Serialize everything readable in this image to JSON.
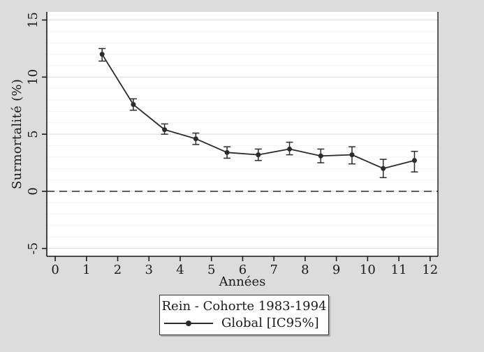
{
  "figure": {
    "background_color": "#dcdcdc",
    "plot_background": "#ffffff",
    "series_color": "#2b2b2b",
    "axis_color": "#1a1a1a",
    "grid_major_color": "#e2e2e2",
    "grid_minor_color": "#f4f4f4",
    "zero_line_color": "#3d3d3d"
  },
  "legend": {
    "title": "Rein - Cohorte 1983-1994",
    "entries": [
      {
        "label": "Global [IC95%]",
        "marker": "line-with-dot"
      }
    ]
  },
  "chart_data": {
    "type": "line",
    "title": "",
    "xlabel": "Années",
    "ylabel": "Surmortalité (%)",
    "xlim": [
      -0.27,
      12.25
    ],
    "ylim": [
      -5.69,
      15.71
    ],
    "x_ticks": [
      0,
      1,
      2,
      3,
      4,
      5,
      6,
      7,
      8,
      9,
      10,
      11,
      12
    ],
    "y_ticks": [
      -5,
      0,
      5,
      10,
      15
    ],
    "y_tick_label_angle": -90,
    "grid": "horizontal",
    "minor_grid_step": 1,
    "zero_reference_line": {
      "y": 0,
      "style": "dashed"
    },
    "legend_position": "bottom-center",
    "series": [
      {
        "name": "Global [IC95%]",
        "marker": "filled-circle",
        "error_bars": "IC95",
        "x": [
          1.5,
          2.5,
          3.5,
          4.5,
          5.5,
          6.5,
          7.5,
          8.5,
          9.5,
          10.5,
          11.5
        ],
        "y": [
          12.0,
          7.6,
          5.4,
          4.6,
          3.4,
          3.2,
          3.7,
          3.1,
          3.2,
          2.0,
          2.7
        ],
        "ci_low": [
          11.4,
          7.1,
          5.0,
          4.1,
          2.9,
          2.7,
          3.2,
          2.5,
          2.4,
          1.2,
          1.7
        ],
        "ci_high": [
          12.5,
          8.1,
          5.9,
          5.1,
          3.9,
          3.7,
          4.3,
          3.7,
          3.9,
          2.8,
          3.5
        ]
      }
    ]
  }
}
